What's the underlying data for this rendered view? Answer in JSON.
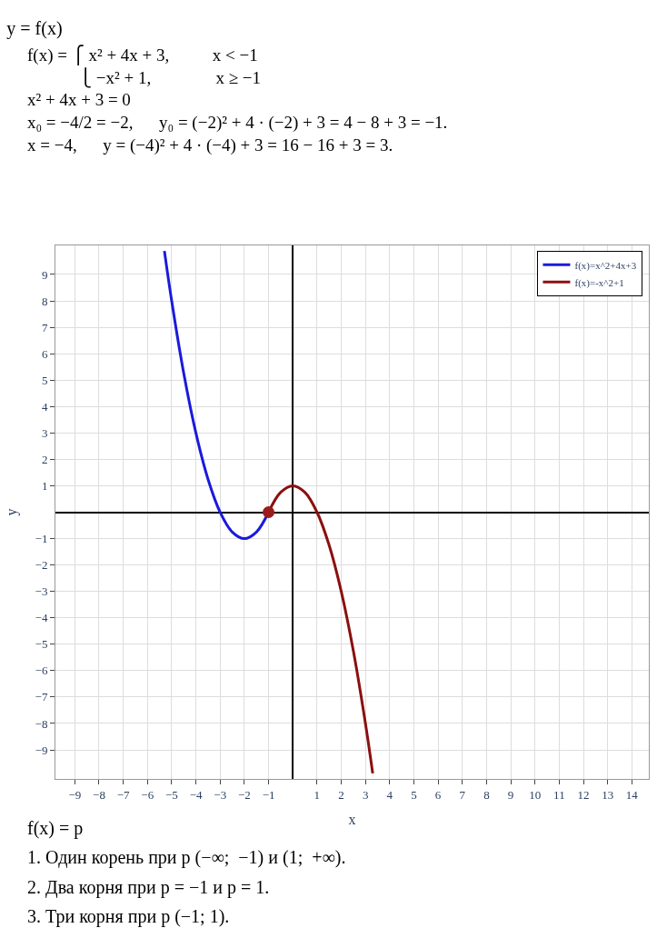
{
  "chart_data": {
    "type": "line",
    "title": "y = f(x)",
    "subtitle": "f(x) = ⎧ x² + 4x + 3,          x < −1\n            ⎩ −x² + 1,               x ≥ −1\nx² + 4x + 3 = 0\nx₀ = −4/2 = −2,      y₀ = (−2)² + 4 · (−2) + 3 = 4 − 8 + 3 = −1.\nx = −4,      y = (−4)² + 4 · (−4) + 3 = 16 − 16 + 3 = 3.",
    "xlabel": "x",
    "ylabel": "y",
    "annotations": [
      "f(x) = p",
      "1. Один корень при p (−∞;  −1) и (1;  +∞).",
      "2. Два корня при p = −1 и p = 1.",
      "3. Три корня при p (−1; 1)."
    ],
    "series": [
      {
        "name": "f(x)=x^2+4x+3",
        "color": "#1a1adc",
        "marker": "none",
        "x": [
          -5.3,
          -5,
          -4.5,
          -4,
          -3.5,
          -3,
          -2.5,
          -2,
          -1.5,
          -1
        ],
        "values": [
          9.89,
          8,
          5.25,
          3,
          1.25,
          0,
          -0.75,
          -1,
          -0.75,
          0
        ]
      },
      {
        "name": "f(x)=-x^2+1",
        "color": "#8b0f0f",
        "marker": "none",
        "x": [
          -1,
          -0.5,
          0,
          0.5,
          1,
          1.5,
          2,
          2.5,
          3,
          3.3
        ],
        "values": [
          0,
          0.75,
          1,
          0.75,
          0,
          -1.25,
          -3,
          -5.25,
          -8,
          -9.89
        ]
      },
      {
        "type": "scatter",
        "color": "#9b1c1c",
        "marker": "circle",
        "x": [
          -1
        ],
        "values": [
          0
        ]
      }
    ],
    "xlim": [
      -9.8,
      14.7
    ],
    "ylim": [
      -10.1,
      10.1
    ],
    "xticks": [
      -9,
      -8,
      -7,
      -6,
      -5,
      -4,
      -3,
      -2,
      -1,
      1,
      2,
      3,
      4,
      5,
      6,
      7,
      8,
      9,
      10,
      11,
      12,
      13,
      14
    ],
    "yticks": [
      -9,
      -8,
      -7,
      -6,
      -5,
      -4,
      -3,
      -2,
      -1,
      1,
      2,
      3,
      4,
      5,
      6,
      7,
      8,
      9
    ],
    "grid": true,
    "legend": "top right",
    "line_style": "solid"
  }
}
